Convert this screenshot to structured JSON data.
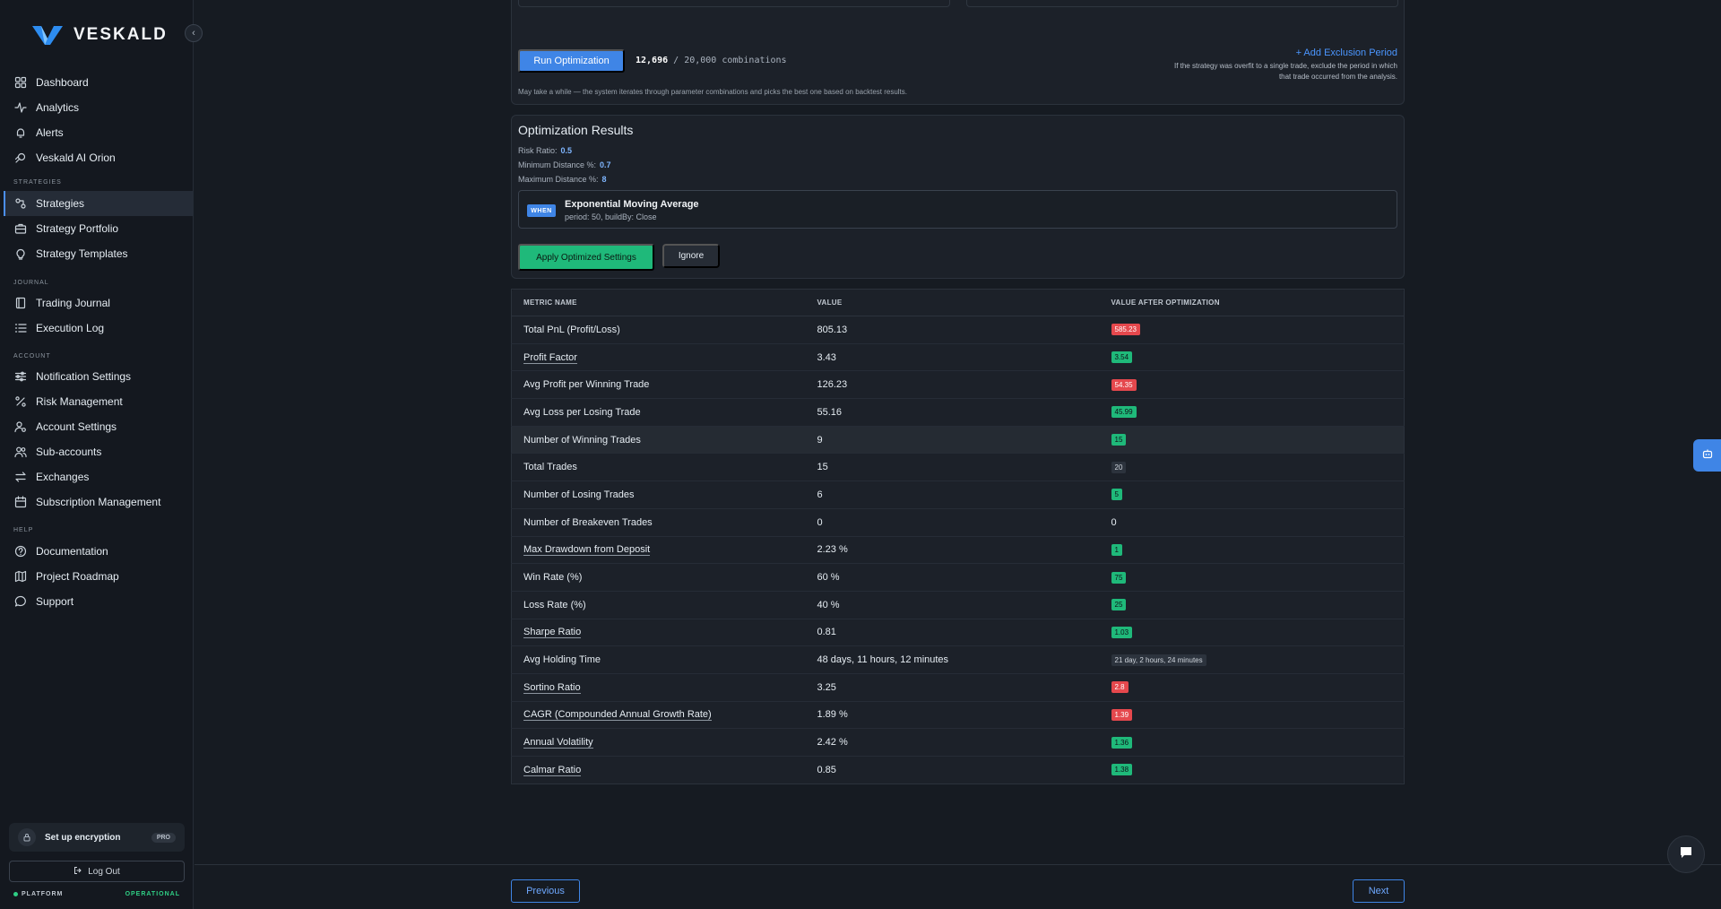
{
  "brand": {
    "name": "VESKALD"
  },
  "sidebar": {
    "items": [
      {
        "label": "Dashboard",
        "icon": "grid-icon"
      },
      {
        "label": "Analytics",
        "icon": "activity-icon"
      },
      {
        "label": "Alerts",
        "icon": "bell-icon"
      },
      {
        "label": "Veskald AI Orion",
        "icon": "orion-icon"
      }
    ],
    "strategies_label": "STRATEGIES",
    "strategies": [
      {
        "label": "Strategies",
        "icon": "strategies-icon",
        "active": true
      },
      {
        "label": "Strategy Portfolio",
        "icon": "briefcase-icon"
      },
      {
        "label": "Strategy Templates",
        "icon": "bulb-icon"
      }
    ],
    "journal_label": "JOURNAL",
    "journal": [
      {
        "label": "Trading Journal",
        "icon": "book-icon"
      },
      {
        "label": "Execution Log",
        "icon": "list-icon"
      }
    ],
    "account_label": "ACCOUNT",
    "account": [
      {
        "label": "Notification Settings",
        "icon": "sliders-icon"
      },
      {
        "label": "Risk Management",
        "icon": "percent-icon"
      },
      {
        "label": "Account Settings",
        "icon": "user-gear-icon"
      },
      {
        "label": "Sub-accounts",
        "icon": "users-icon"
      },
      {
        "label": "Exchanges",
        "icon": "arrows-icon"
      },
      {
        "label": "Subscription Management",
        "icon": "calendar-icon"
      }
    ],
    "help_label": "HELP",
    "help": [
      {
        "label": "Documentation",
        "icon": "help-circle-icon"
      },
      {
        "label": "Project Roadmap",
        "icon": "map-icon"
      },
      {
        "label": "Support",
        "icon": "message-icon"
      }
    ],
    "encryption_label": "Set up encryption",
    "pro_badge": "PRO",
    "logout_label": "Log Out",
    "platform_label": "PLATFORM",
    "platform_status": "OPERATIONAL"
  },
  "optimization": {
    "run_label": "Run Optimization",
    "combinations_done": "12,696",
    "combinations_sep": " / ",
    "combinations_total": "20,000 combinations",
    "exclusion_link": "+ Add Exclusion Period",
    "exclusion_help": "If the strategy was overfit to a single trade, exclude the period in which that trade occurred from the analysis.",
    "wait_note": "May take a while — the system iterates through parameter combinations and picks the best one based on backtest results."
  },
  "results": {
    "title": "Optimization Results",
    "params": [
      {
        "label": "Risk Ratio:",
        "value": "0.5"
      },
      {
        "label": "Minimum Distance %:",
        "value": "0.7"
      },
      {
        "label": "Maximum Distance %:",
        "value": "8"
      }
    ],
    "when_badge": "WHEN",
    "indicator_name": "Exponential Moving Average",
    "indicator_params": "period: 50, buildBy: Close",
    "apply_label": "Apply Optimized Settings",
    "ignore_label": "Ignore"
  },
  "metrics": {
    "headers": [
      "METRIC NAME",
      "VALUE",
      "VALUE AFTER OPTIMIZATION"
    ],
    "rows": [
      {
        "name": "Total PnL (Profit/Loss)",
        "value": "805.13",
        "after": "585.23",
        "tone": "red",
        "underline": false
      },
      {
        "name": "Profit Factor",
        "value": "3.43",
        "after": "3.54",
        "tone": "green",
        "underline": true
      },
      {
        "name": "Avg Profit per Winning Trade",
        "value": "126.23",
        "after": "54.35",
        "tone": "red",
        "underline": false
      },
      {
        "name": "Avg Loss per Losing Trade",
        "value": "55.16",
        "after": "45.99",
        "tone": "green",
        "underline": false
      },
      {
        "name": "Number of Winning Trades",
        "value": "9",
        "after": "15",
        "tone": "green",
        "underline": false,
        "highlight": true
      },
      {
        "name": "Total Trades",
        "value": "15",
        "after": "20",
        "tone": "gray",
        "underline": false
      },
      {
        "name": "Number of Losing Trades",
        "value": "6",
        "after": "5",
        "tone": "green",
        "underline": false
      },
      {
        "name": "Number of Breakeven Trades",
        "value": "0",
        "after": "0",
        "tone": "plain",
        "underline": false
      },
      {
        "name": "Max Drawdown from Deposit",
        "value": "2.23 %",
        "after": "1",
        "tone": "green",
        "underline": true
      },
      {
        "name": "Win Rate (%)",
        "value": "60 %",
        "after": "75",
        "tone": "green",
        "underline": false
      },
      {
        "name": "Loss Rate (%)",
        "value": "40 %",
        "after": "25",
        "tone": "green",
        "underline": false
      },
      {
        "name": "Sharpe Ratio",
        "value": "0.81",
        "after": "1.03",
        "tone": "green",
        "underline": true
      },
      {
        "name": "Avg Holding Time",
        "value": "48 days, 11 hours, 12 minutes",
        "after": "21 day, 2 hours, 24 minutes",
        "tone": "gray",
        "underline": false
      },
      {
        "name": "Sortino Ratio",
        "value": "3.25",
        "after": "2.8",
        "tone": "red",
        "underline": true
      },
      {
        "name": "CAGR (Compounded Annual Growth Rate)",
        "value": "1.89 %",
        "after": "1.39",
        "tone": "red",
        "underline": true
      },
      {
        "name": "Annual Volatility",
        "value": "2.42 %",
        "after": "1.36",
        "tone": "green",
        "underline": true
      },
      {
        "name": "Calmar Ratio",
        "value": "0.85",
        "after": "1.38",
        "tone": "green",
        "underline": true
      }
    ]
  },
  "footer": {
    "previous_label": "Previous",
    "next_label": "Next"
  },
  "colors": {
    "accent": "#3f85e6",
    "positive": "#1fb97a",
    "negative": "#e5484d",
    "background": "#161b22"
  }
}
